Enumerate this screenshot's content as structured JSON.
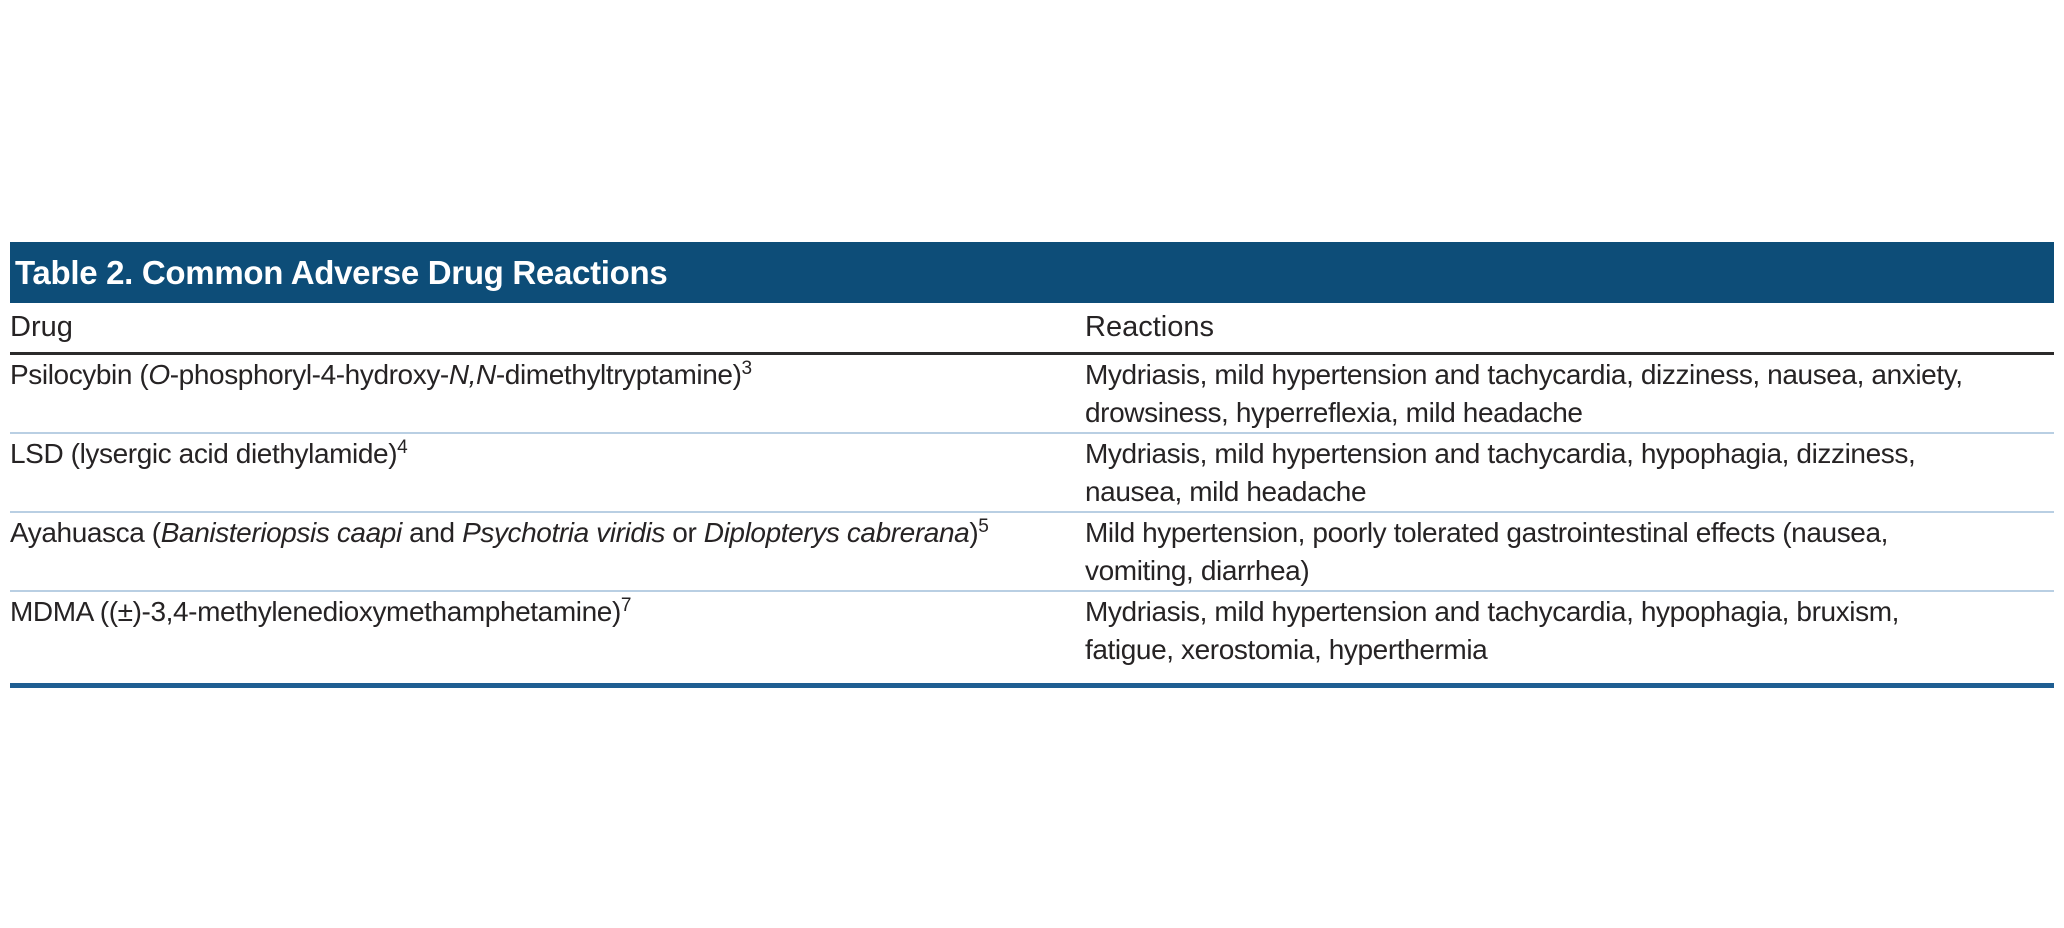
{
  "table": {
    "title": "Table 2. Common Adverse Drug Reactions",
    "colors": {
      "header_bg": "#0d4d78",
      "header_text": "#ffffff",
      "body_text": "#262324",
      "header_rule": "#2b2a2a",
      "row_divider": "#b9cfe3",
      "bottom_border": "#1f5e92"
    },
    "columns": [
      {
        "label": "Drug"
      },
      {
        "label": "Reactions"
      }
    ],
    "rows": [
      {
        "drug_segments": [
          {
            "text": "Psilocybin ("
          },
          {
            "text": "O",
            "italic": true
          },
          {
            "text": "-phosphoryl-4-hydroxy-"
          },
          {
            "text": "N,N",
            "italic": true
          },
          {
            "text": "-dimethyltryptamine)"
          },
          {
            "text": "3",
            "sup": true
          }
        ],
        "reactions": "Mydriasis, mild hypertension and tachycardia, dizziness, nausea, anxiety,\ndrowsiness, hyperreflexia, mild headache"
      },
      {
        "drug_segments": [
          {
            "text": "LSD (lysergic acid diethylamide)"
          },
          {
            "text": "4",
            "sup": true
          }
        ],
        "reactions": "Mydriasis, mild hypertension and tachycardia, hypophagia, dizziness,\nnausea, mild headache"
      },
      {
        "drug_segments": [
          {
            "text": "Ayahuasca ("
          },
          {
            "text": "Banisteriopsis caapi",
            "italic": true
          },
          {
            "text": " and "
          },
          {
            "text": "Psychotria viridis",
            "italic": true
          },
          {
            "text": " or "
          },
          {
            "text": "Diplopterys cabrerana",
            "italic": true
          },
          {
            "text": ")"
          },
          {
            "text": "5",
            "sup": true
          }
        ],
        "reactions": "Mild hypertension, poorly tolerated gastrointestinal effects (nausea,\nvomiting, diarrhea)"
      },
      {
        "drug_segments": [
          {
            "text": "MDMA ((±)-3,4-methylenedioxymethamphetamine)"
          },
          {
            "text": "7",
            "sup": true
          }
        ],
        "reactions": "Mydriasis, mild hypertension and tachycardia, hypophagia, bruxism,\nfatigue, xerostomia, hyperthermia"
      }
    ]
  }
}
